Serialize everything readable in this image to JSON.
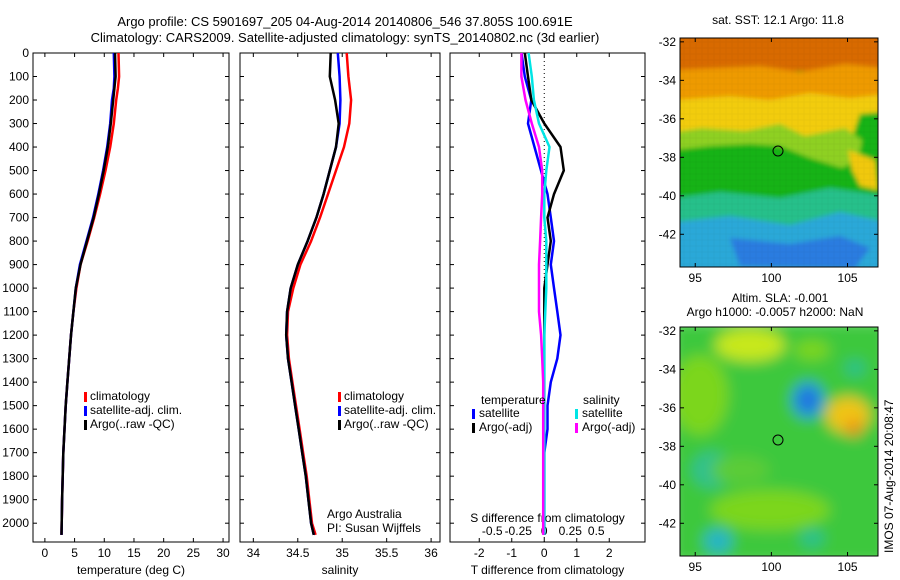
{
  "header": {
    "line1": "Argo profile: CS 5901697_205 04-Aug-2014 20140806_546 37.805S 100.691E",
    "line2": "Climatology: CARS2009. Satellite-adjusted climatology: synTS_20140802.nc (3d earlier)"
  },
  "sst_title": "sat. SST: 12.1 Argo: 11.8",
  "sla_title1": "Altim. SLA: -0.001",
  "sla_title2": "Argo h1000: -0.0057 h2000: NaN",
  "credit1": "Argo Australia",
  "credit2": "PI: Susan Wijffels",
  "timestamp": "IMOS 07-Aug-2014 20:08:47",
  "legend": {
    "climatology": "climatology",
    "satellite_adj": "satellite-adj. clim.",
    "argo_raw": "Argo(..raw -QC)",
    "temperature": "temperature",
    "salinity": "salinity",
    "satellite": "satellite",
    "argo_adj": "Argo(-adj)"
  },
  "colors": {
    "climatology": "#ff0000",
    "satellite": "#0000ff",
    "argo": "#000000",
    "sal_satellite": "#00e5e5",
    "sal_argo": "#ff00ff"
  },
  "chart_data": [
    {
      "type": "line",
      "xlabel": "temperature (deg C)",
      "ylabel": "",
      "xlim": [
        -2,
        31
      ],
      "ylim": [
        2080,
        0
      ],
      "xticks": [
        0,
        5,
        10,
        15,
        20,
        25,
        30
      ],
      "yticks": [
        0,
        100,
        200,
        300,
        400,
        500,
        600,
        700,
        800,
        900,
        1000,
        1100,
        1200,
        1300,
        1400,
        1500,
        1600,
        1700,
        1800,
        1900,
        2000
      ],
      "series": [
        {
          "name": "climatology",
          "x": [
            12.4,
            12.5,
            12.3,
            12.0,
            11.6,
            11.0,
            10.2,
            9.3,
            8.3,
            7.2,
            6.0,
            5.3,
            4.8,
            4.4,
            4.1,
            3.8,
            3.5,
            3.3,
            3.1,
            3.0,
            2.9,
            2.8
          ],
          "y": [
            0,
            100,
            150,
            200,
            300,
            400,
            500,
            600,
            700,
            800,
            900,
            1000,
            1100,
            1200,
            1300,
            1400,
            1500,
            1600,
            1700,
            1800,
            1900,
            2050
          ]
        },
        {
          "name": "satellite-adj. clim.",
          "x": [
            11.6,
            11.7,
            11.6,
            11.3,
            11.0,
            10.5,
            9.8,
            9.0,
            8.1,
            7.0,
            5.9,
            5.2,
            4.8,
            4.4,
            4.1,
            3.8,
            3.5,
            3.3,
            3.1,
            3.0,
            2.9,
            2.8
          ],
          "y": [
            0,
            100,
            150,
            200,
            300,
            400,
            500,
            600,
            700,
            800,
            900,
            1000,
            1100,
            1200,
            1300,
            1400,
            1500,
            1600,
            1700,
            1800,
            1900,
            2050
          ]
        },
        {
          "name": "Argo(..raw -QC)",
          "x": [
            11.8,
            11.9,
            11.7,
            11.5,
            11.1,
            10.6,
            9.9,
            9.1,
            8.2,
            7.1,
            6.0,
            5.2,
            4.8,
            4.4,
            4.1,
            3.8,
            3.5,
            3.3,
            3.1,
            3.0,
            2.9,
            2.8
          ],
          "y": [
            0,
            100,
            150,
            200,
            300,
            400,
            500,
            600,
            700,
            800,
            900,
            1000,
            1100,
            1200,
            1300,
            1400,
            1500,
            1600,
            1700,
            1800,
            1900,
            2050
          ]
        }
      ]
    },
    {
      "type": "line",
      "xlabel": "salinity",
      "ylabel": "",
      "xlim": [
        33.85,
        36.1
      ],
      "ylim": [
        2080,
        0
      ],
      "xticks": [
        34,
        34.5,
        35,
        35.5,
        36
      ],
      "series": [
        {
          "name": "climatology",
          "x": [
            35.05,
            35.07,
            35.1,
            35.08,
            35.02,
            34.93,
            34.84,
            34.75,
            34.65,
            34.53,
            34.45,
            34.39,
            34.38,
            34.4,
            34.44,
            34.48,
            34.52,
            34.56,
            34.6,
            34.63,
            34.66,
            34.7
          ],
          "y": [
            0,
            100,
            200,
            300,
            400,
            500,
            600,
            700,
            800,
            900,
            1000,
            1100,
            1200,
            1300,
            1400,
            1500,
            1600,
            1700,
            1800,
            1900,
            2000,
            2050
          ]
        },
        {
          "name": "satellite-adj. clim.",
          "x": [
            34.95,
            34.97,
            34.98,
            34.97,
            34.93,
            34.86,
            34.79,
            34.71,
            34.61,
            34.5,
            34.42,
            34.38,
            34.37,
            34.39,
            34.43,
            34.47,
            34.51,
            34.55,
            34.59,
            34.62,
            34.65,
            34.68
          ],
          "y": [
            0,
            100,
            200,
            300,
            400,
            500,
            600,
            700,
            800,
            900,
            1000,
            1100,
            1200,
            1300,
            1400,
            1500,
            1600,
            1700,
            1800,
            1900,
            2000,
            2050
          ]
        },
        {
          "name": "Argo(..raw -QC)",
          "x": [
            34.87,
            34.86,
            34.92,
            34.96,
            34.93,
            34.86,
            34.79,
            34.71,
            34.61,
            34.5,
            34.42,
            34.38,
            34.37,
            34.39,
            34.43,
            34.47,
            34.51,
            34.55,
            34.59,
            34.62,
            34.65,
            34.68
          ],
          "y": [
            0,
            100,
            200,
            300,
            400,
            500,
            600,
            700,
            800,
            900,
            1000,
            1100,
            1200,
            1300,
            1400,
            1500,
            1600,
            1700,
            1800,
            1900,
            2000,
            2050
          ]
        }
      ]
    },
    {
      "type": "line",
      "xlabel": "T difference from climatology",
      "ylabel": "",
      "xlim": [
        -2.9,
        3.1
      ],
      "ylim": [
        2080,
        0
      ],
      "xticks": [
        -2,
        -1,
        0,
        1,
        2
      ],
      "secondary_xlabel": "S difference from climatology",
      "secondary_xticks": [
        -0.5,
        -0.25,
        0,
        0.25,
        0.5
      ],
      "series": [
        {
          "name": "temperature satellite",
          "x": [
            -0.7,
            -0.6,
            -0.4,
            -0.5,
            -0.3,
            -0.1,
            0.1,
            0.2,
            0.3,
            0.2,
            0.3,
            0.4,
            0.5,
            0.4,
            0.2,
            0.1,
            0.1,
            0.0,
            0.0,
            0.0,
            0.0,
            0.0
          ],
          "y": [
            0,
            100,
            200,
            300,
            400,
            500,
            600,
            700,
            800,
            900,
            1000,
            1100,
            1200,
            1300,
            1400,
            1500,
            1600,
            1700,
            1800,
            1900,
            2000,
            2050
          ]
        },
        {
          "name": "temperature Argo(-adj)",
          "x": [
            -0.6,
            -0.5,
            -0.4,
            0.0,
            0.5,
            0.6,
            0.3,
            0.1,
            0.2,
            0.1,
            0.0,
            0.0,
            0.0,
            0.0,
            0.0,
            0.0,
            0.0,
            0.0,
            0.0,
            0.0,
            0.0,
            0.0
          ],
          "y": [
            0,
            100,
            200,
            300,
            400,
            500,
            600,
            700,
            800,
            900,
            1000,
            1100,
            1200,
            1300,
            1400,
            1500,
            1600,
            1700,
            1800,
            1900,
            2000,
            2050
          ]
        },
        {
          "name": "salinity satellite",
          "x": [
            -0.15,
            -0.12,
            -0.1,
            -0.05,
            0.05,
            0.02,
            0.0,
            0.0,
            0.02,
            0.02,
            0.02,
            0.01,
            0.0,
            0.0,
            0.0,
            0.0,
            0.0,
            0.0,
            0.0,
            0.0,
            0.0,
            0.0
          ],
          "y": [
            0,
            100,
            200,
            300,
            400,
            500,
            600,
            700,
            800,
            900,
            1000,
            1100,
            1200,
            1300,
            1400,
            1500,
            1600,
            1700,
            1800,
            1900,
            2000,
            2050
          ]
        },
        {
          "name": "salinity Argo(-adj)",
          "x": [
            -0.22,
            -0.22,
            -0.18,
            -0.12,
            -0.05,
            -0.02,
            -0.02,
            -0.03,
            -0.04,
            -0.05,
            -0.05,
            -0.05,
            -0.03,
            -0.02,
            -0.01,
            -0.01,
            -0.01,
            -0.01,
            -0.01,
            -0.01,
            -0.01,
            -0.01
          ],
          "y": [
            0,
            100,
            200,
            300,
            400,
            500,
            600,
            700,
            800,
            900,
            1000,
            1100,
            1200,
            1300,
            1400,
            1500,
            1600,
            1700,
            1800,
            1900,
            2000,
            2050
          ]
        }
      ]
    },
    {
      "type": "heatmap",
      "title": "sat. SST: 12.1 Argo: 11.8",
      "xlim": [
        94,
        107
      ],
      "ylim": [
        -43.7,
        -31.8
      ],
      "xticks": [
        95,
        100,
        105
      ],
      "yticks": [
        -32,
        -34,
        -36,
        -38,
        -40,
        -42
      ],
      "argo_position": [
        100.691,
        -37.805
      ]
    },
    {
      "type": "heatmap",
      "title": "Altim. SLA: -0.001",
      "xlim": [
        94,
        107
      ],
      "ylim": [
        -43.7,
        -31.8
      ],
      "xticks": [
        95,
        100,
        105
      ],
      "yticks": [
        -32,
        -34,
        -36,
        -38,
        -40,
        -42
      ],
      "argo_position": [
        100.691,
        -37.805
      ]
    }
  ]
}
